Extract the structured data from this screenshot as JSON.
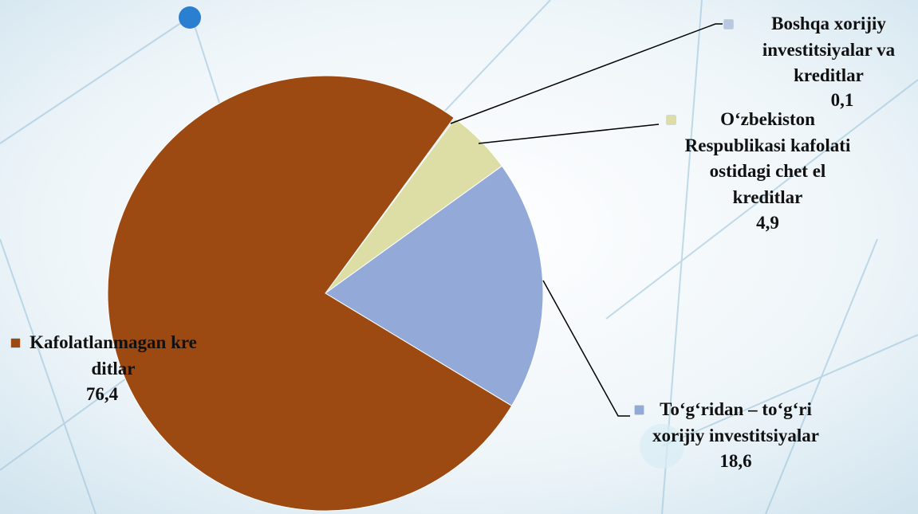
{
  "chart_data": {
    "type": "pie",
    "categories": [
      "Boshqa  xorijiy investitsiyalar va kreditlar",
      "O‘zbekiston Respublikasi kafolati ostidagi chet el kreditlar",
      "To‘g‘ridan – to‘g‘ri xorijiy investitsiyalar",
      "Kafolatlanmagan kreditlar"
    ],
    "values": [
      0.1,
      4.9,
      18.6,
      76.4
    ],
    "value_labels": [
      "0,1",
      "4,9",
      "18,6",
      "76,4"
    ],
    "colors": [
      "#b9c8e2",
      "#dcdea6",
      "#93aad8",
      "#9c4a12"
    ]
  }
}
